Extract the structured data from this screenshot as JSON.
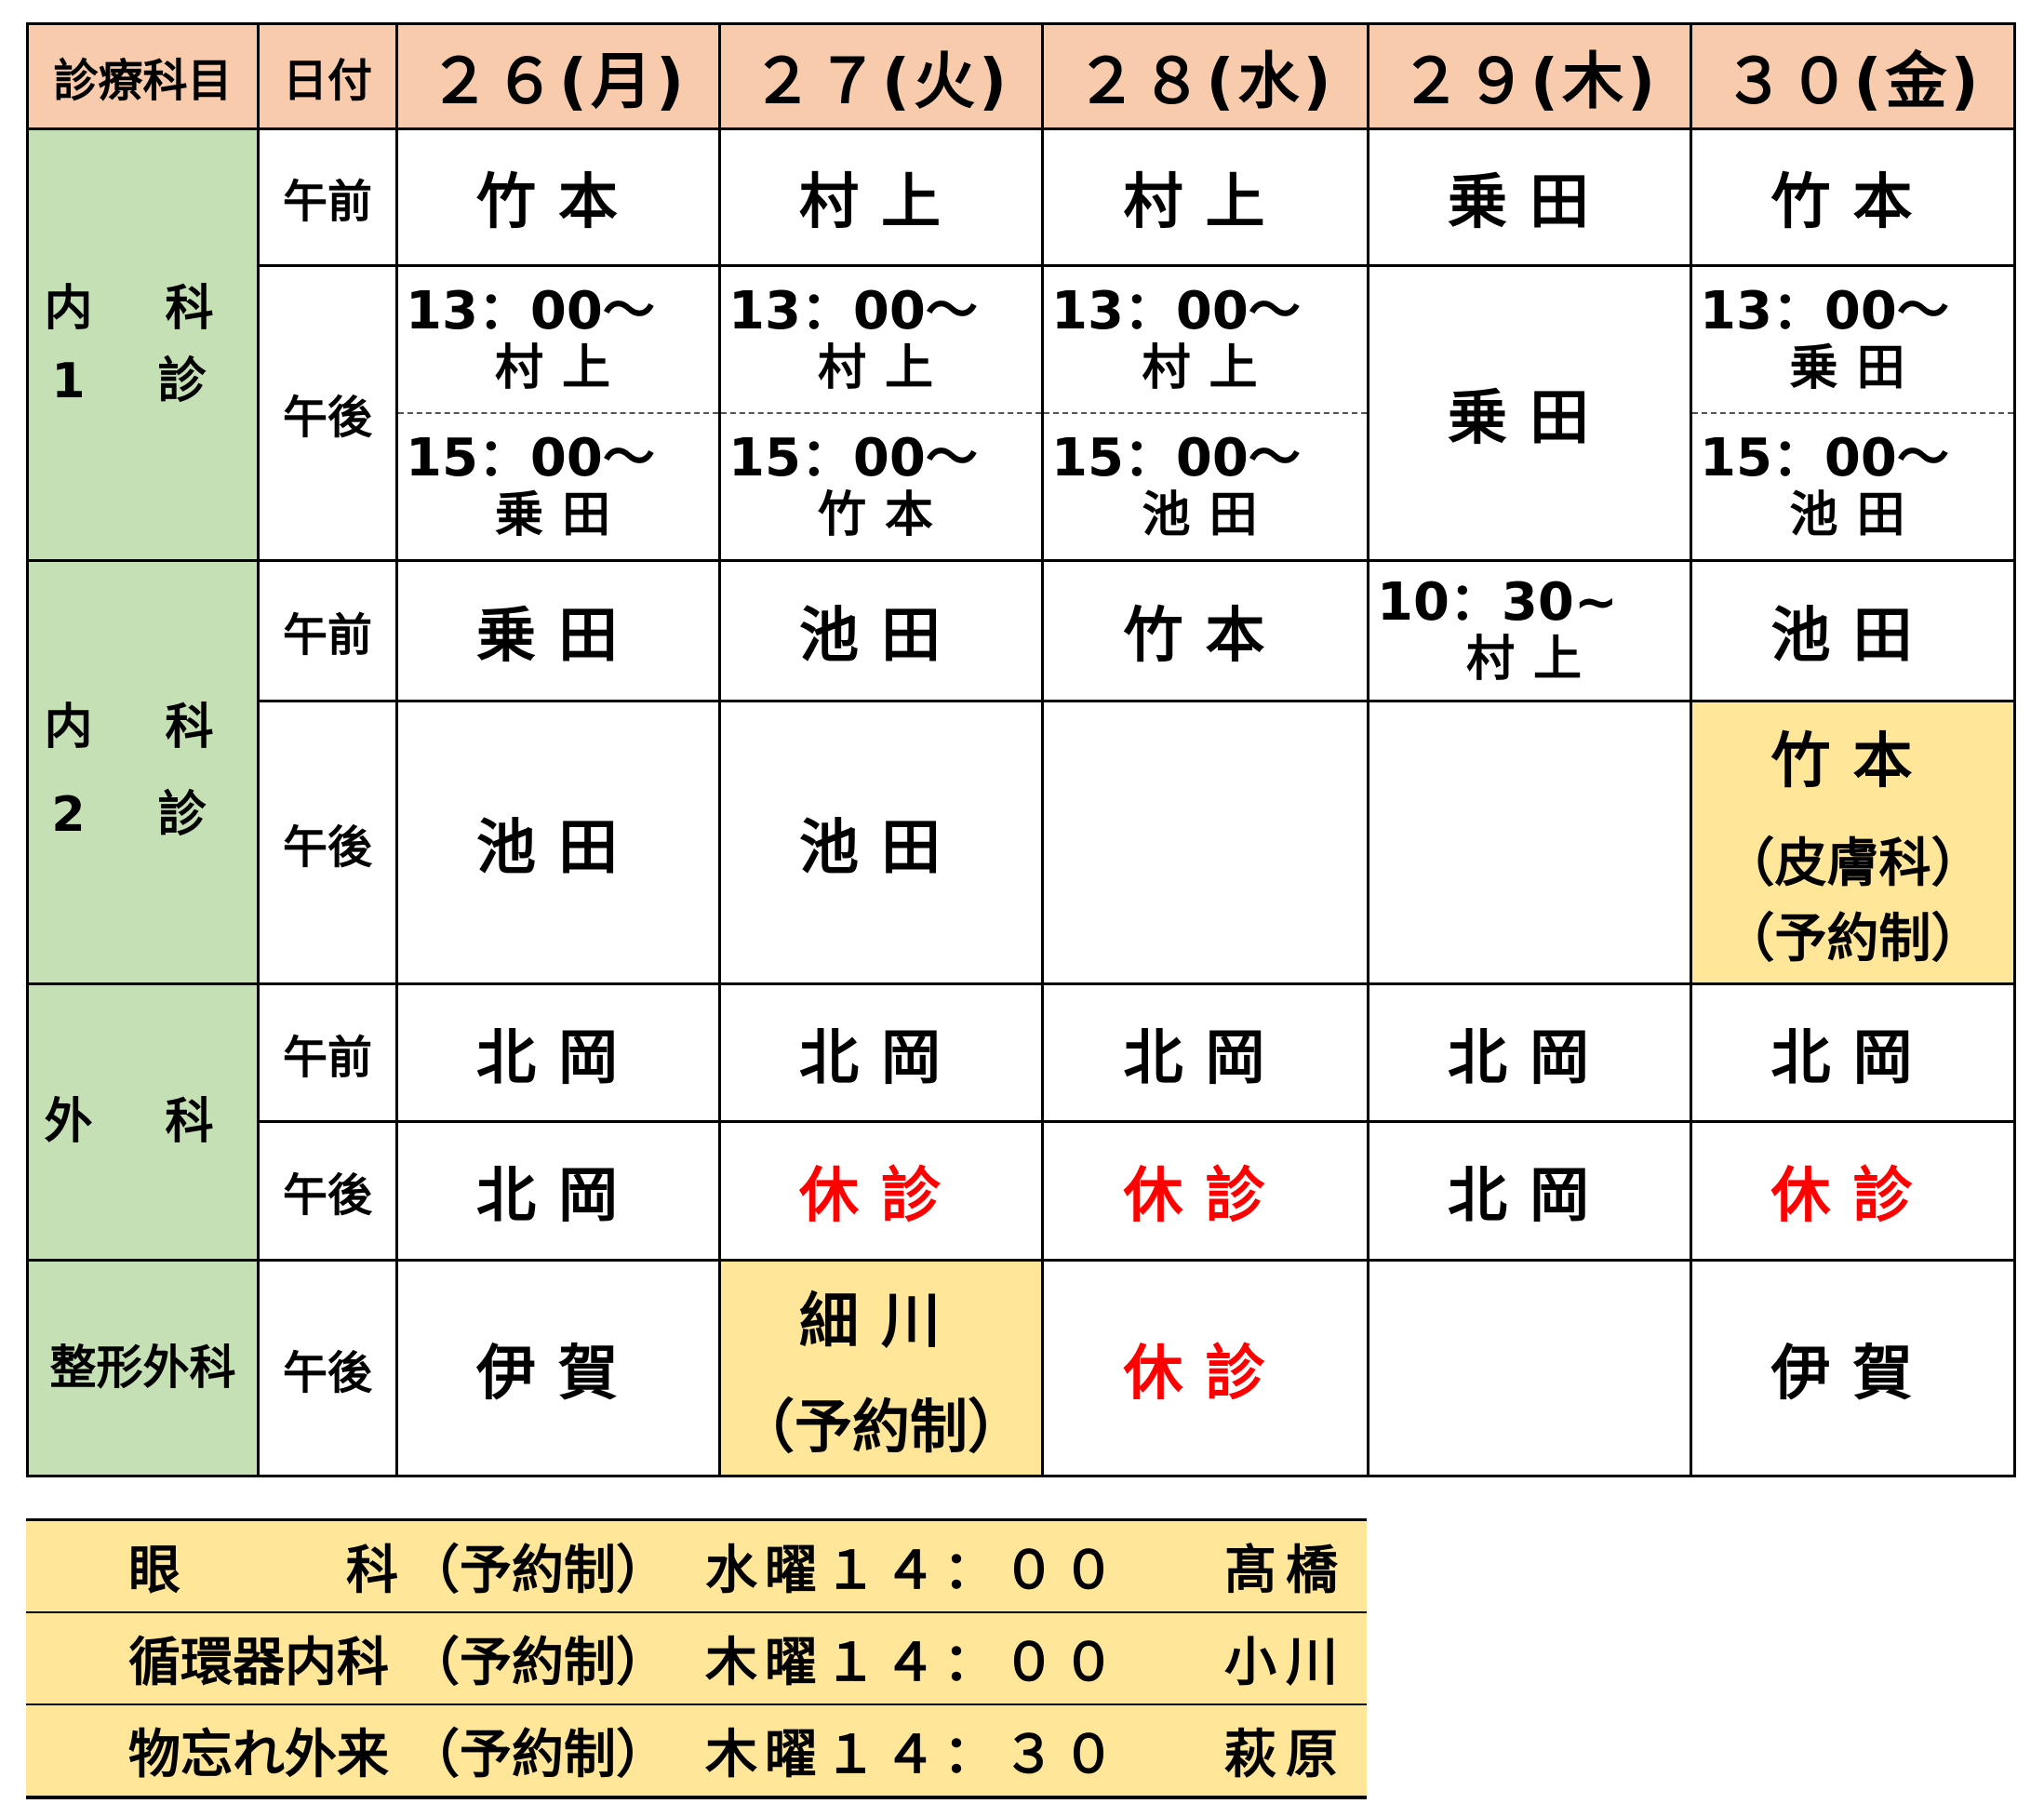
{
  "header": {
    "dept": "診療科目",
    "date": "日付",
    "days": [
      "２６(月)",
      "２７(火)",
      "２８(水)",
      "２９(木)",
      "３０(金)"
    ]
  },
  "slots": {
    "am": "午前",
    "pm": "午後"
  },
  "colors": {
    "header": "#F8CBAD",
    "dept": "#C5E0B4",
    "highlight": "#FFE699",
    "closed": "#FF0000"
  },
  "naika1": {
    "label_line1": "内 科",
    "label_line2": "1 診",
    "am": [
      "竹本",
      "村上",
      "村上",
      "乗田",
      "竹本"
    ],
    "pm": {
      "d26": [
        {
          "time": "13：00〜",
          "name": "村上"
        },
        {
          "time": "15：00〜",
          "name": "乗田"
        }
      ],
      "d27": [
        {
          "time": "13：00〜",
          "name": "村上"
        },
        {
          "time": "15：00〜",
          "name": "竹本"
        }
      ],
      "d28": [
        {
          "time": "13：00〜",
          "name": "村上"
        },
        {
          "time": "15：00〜",
          "name": "池田"
        }
      ],
      "d29": "乗田",
      "d30": [
        {
          "time": "13：00〜",
          "name": "乗田"
        },
        {
          "time": "15：00〜",
          "name": "池田"
        }
      ]
    }
  },
  "naika2": {
    "label_line1": "内 科",
    "label_line2": "2 診",
    "am": {
      "d26": "乗田",
      "d27": "池田",
      "d28": "竹本",
      "d29_time": "10：30~",
      "d29_name": "村上",
      "d30": "池田"
    },
    "pm": {
      "d26": "池田",
      "d27": "池田",
      "d30_name": "竹本",
      "d30_note1": "（皮膚科）",
      "d30_note2": "（予約制）"
    }
  },
  "geka": {
    "label": "外 科",
    "am": [
      "北岡",
      "北岡",
      "北岡",
      "北岡",
      "北岡"
    ],
    "pm": [
      "北岡",
      "休診",
      "休診",
      "北岡",
      "休診"
    ]
  },
  "seikei": {
    "label": "整形外科",
    "pm": {
      "d26": "伊賀",
      "d27_name": "細川",
      "d27_note": "（予約制）",
      "d28": "休診",
      "d30": "伊賀"
    }
  },
  "special": [
    {
      "dept_a": "眼",
      "dept_b": "科",
      "note": "（予約制）",
      "time": "水曜１４：００",
      "doctor": "髙橋"
    },
    {
      "dept_a": "循環器内科",
      "dept_b": "",
      "note": "（予約制）",
      "time": "木曜１４：００",
      "doctor": "小川"
    },
    {
      "dept_a": "物忘れ外来",
      "dept_b": "",
      "note": "（予約制）",
      "time": "木曜１４：３０",
      "doctor": "萩原"
    }
  ]
}
